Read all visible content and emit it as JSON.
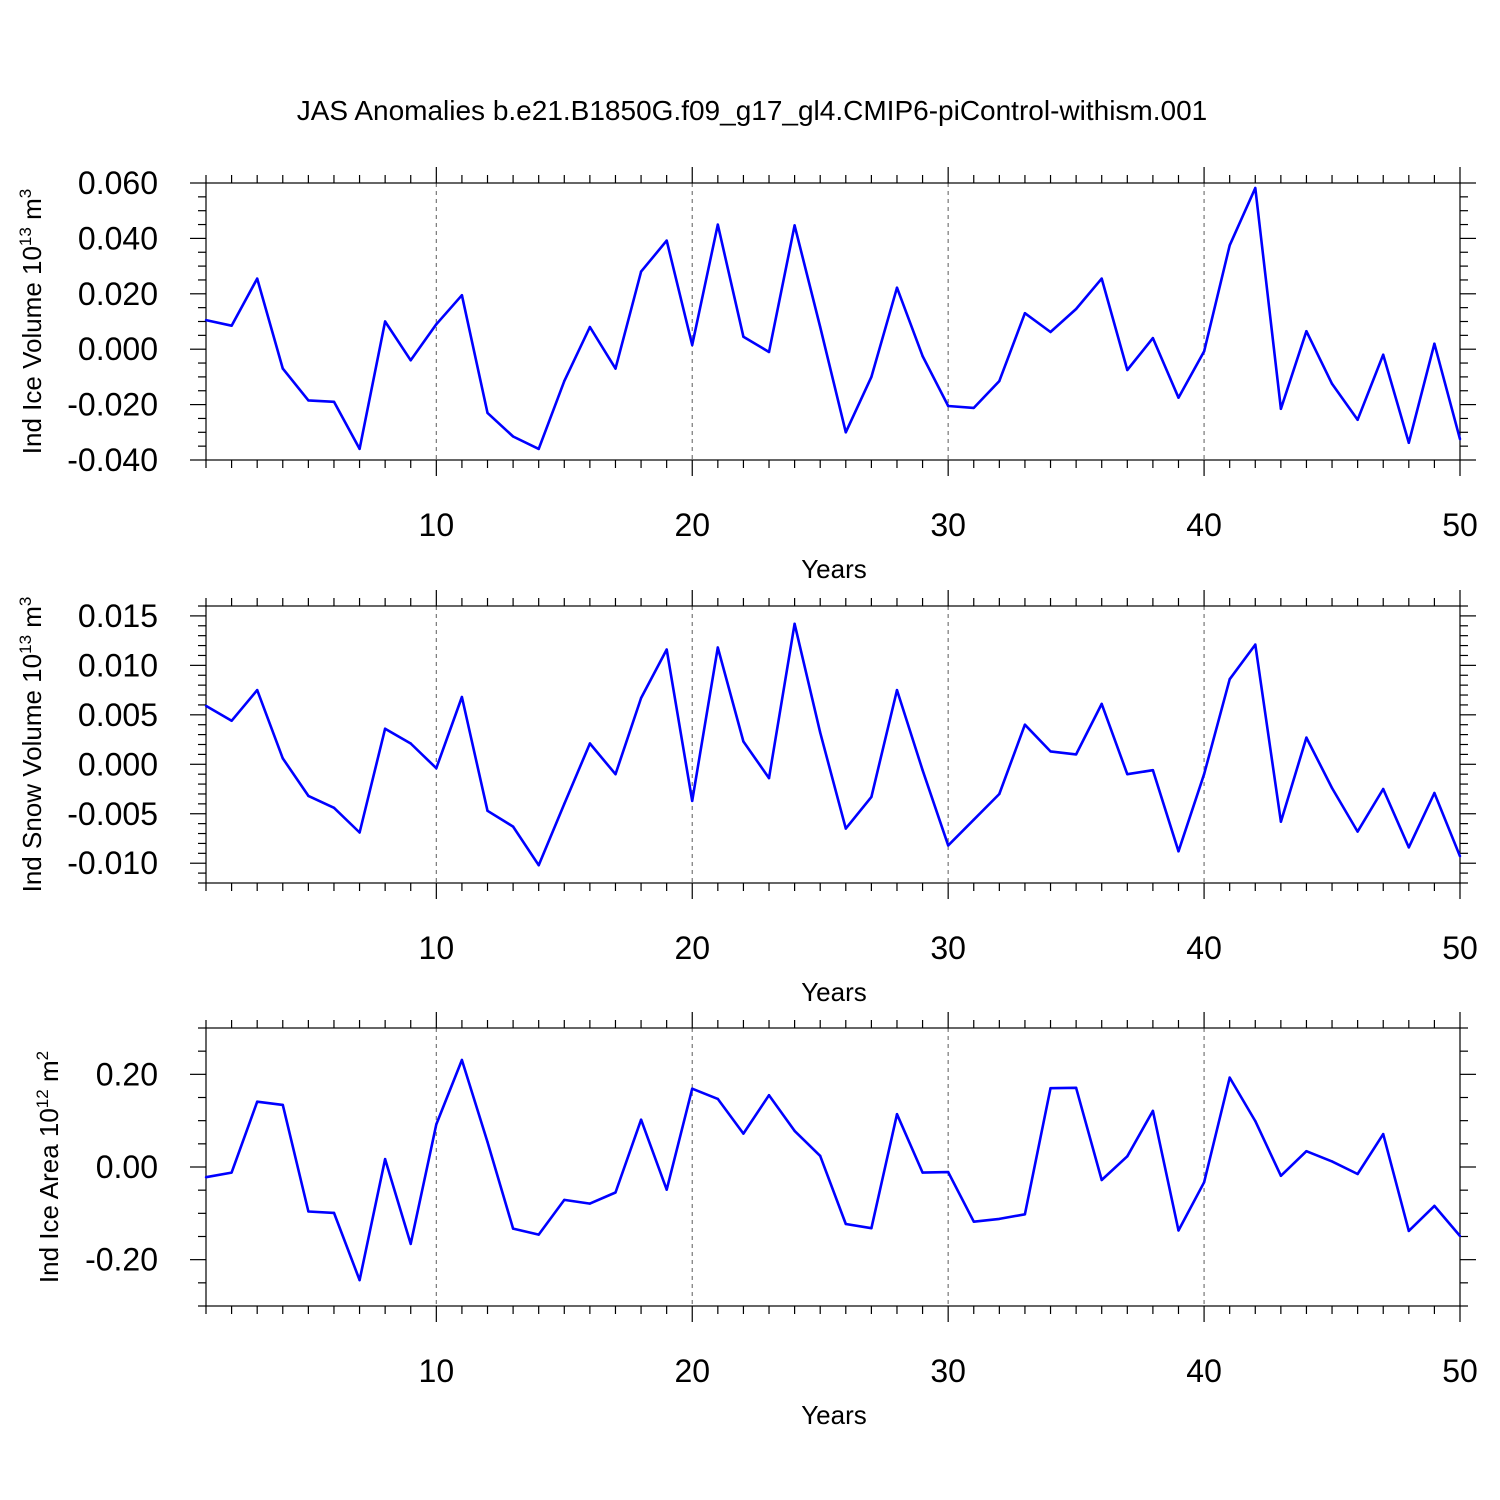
{
  "title": "JAS Anomalies b.e21.B1850G.f09_g17_gl4.CMIP6-piControl-withism.001",
  "line_color": "#0000ff",
  "chart_data": [
    {
      "type": "line",
      "xlabel": "Years",
      "ylabel_text": "Ind Ice Volume 10",
      "ylabel_exp": "13",
      "ylabel_unit": " m",
      "ylabel_unit_exp": "3",
      "xlim": [
        1,
        50
      ],
      "ylim": [
        -0.04,
        0.06
      ],
      "xticks": [
        10,
        20,
        30,
        40,
        50
      ],
      "xtick_labels": [
        "10",
        "20",
        "30",
        "40",
        "50"
      ],
      "yticks": [
        -0.04,
        -0.02,
        0.0,
        0.02,
        0.04,
        0.06
      ],
      "ytick_labels": [
        "-0.040",
        "-0.020",
        "0.000",
        "0.020",
        "0.040",
        "0.060"
      ],
      "yminor_step": 0.005,
      "x": [
        1,
        2,
        3,
        4,
        5,
        6,
        7,
        8,
        9,
        10,
        11,
        12,
        13,
        14,
        15,
        16,
        17,
        18,
        19,
        20,
        21,
        22,
        23,
        24,
        25,
        26,
        27,
        28,
        29,
        30,
        31,
        32,
        33,
        34,
        35,
        36,
        37,
        38,
        39,
        40,
        41,
        42,
        43,
        44,
        45,
        46,
        47,
        48,
        49,
        50
      ],
      "values": [
        0.0105,
        0.0085,
        0.0255,
        -0.007,
        -0.0185,
        -0.019,
        -0.036,
        0.01,
        -0.004,
        0.009,
        0.0195,
        -0.023,
        -0.0315,
        -0.036,
        -0.0115,
        0.008,
        -0.007,
        0.028,
        0.0392,
        0.0015,
        0.045,
        0.0045,
        -0.001,
        0.0447,
        0.008,
        -0.03,
        -0.01,
        0.0222,
        -0.0025,
        -0.0205,
        -0.0212,
        -0.0115,
        0.013,
        0.0062,
        0.0145,
        0.0255,
        -0.0075,
        0.004,
        -0.0175,
        -0.0008,
        0.0375,
        0.0582,
        -0.0215,
        0.0065,
        -0.0125,
        -0.0255,
        -0.002,
        -0.0338,
        0.002,
        -0.0325
      ]
    },
    {
      "type": "line",
      "xlabel": "Years",
      "ylabel_text": "Ind Snow Volume 10",
      "ylabel_exp": "13",
      "ylabel_unit": " m",
      "ylabel_unit_exp": "3",
      "xlim": [
        1,
        50
      ],
      "ylim": [
        -0.012,
        0.016
      ],
      "xticks": [
        10,
        20,
        30,
        40,
        50
      ],
      "xtick_labels": [
        "10",
        "20",
        "30",
        "40",
        "50"
      ],
      "yticks": [
        -0.01,
        -0.005,
        0.0,
        0.005,
        0.01,
        0.015
      ],
      "ytick_labels": [
        "-0.010",
        "-0.005",
        "0.000",
        "0.005",
        "0.010",
        "0.015"
      ],
      "yminor_step": 0.001,
      "x": [
        1,
        2,
        3,
        4,
        5,
        6,
        7,
        8,
        9,
        10,
        11,
        12,
        13,
        14,
        15,
        16,
        17,
        18,
        19,
        20,
        21,
        22,
        23,
        24,
        25,
        26,
        27,
        28,
        29,
        30,
        31,
        32,
        33,
        34,
        35,
        36,
        37,
        38,
        39,
        40,
        41,
        42,
        43,
        44,
        45,
        46,
        47,
        48,
        49,
        50
      ],
      "values": [
        0.0059,
        0.0044,
        0.0075,
        0.0006,
        -0.0032,
        -0.0044,
        -0.0069,
        0.0036,
        0.0021,
        -0.0004,
        0.0068,
        -0.0047,
        -0.0063,
        -0.0102,
        -0.004,
        0.0021,
        -0.001,
        0.0067,
        0.0116,
        -0.0037,
        0.0118,
        0.0023,
        -0.0014,
        0.0142,
        0.0032,
        -0.0065,
        -0.0033,
        0.0075,
        -0.0006,
        -0.0082,
        -0.0056,
        -0.003,
        0.004,
        0.0013,
        0.001,
        0.0061,
        -0.001,
        -0.0006,
        -0.0088,
        -0.001,
        0.0086,
        0.0121,
        -0.0058,
        0.0027,
        -0.0024,
        -0.0068,
        -0.0025,
        -0.0084,
        -0.0029,
        -0.0093
      ]
    },
    {
      "type": "line",
      "xlabel": "Years",
      "ylabel_text": "Ind Ice Area 10",
      "ylabel_exp": "12",
      "ylabel_unit": " m",
      "ylabel_unit_exp": "2",
      "xlim": [
        1,
        50
      ],
      "ylim": [
        -0.3,
        0.3
      ],
      "xticks": [
        10,
        20,
        30,
        40,
        50
      ],
      "xtick_labels": [
        "10",
        "20",
        "30",
        "40",
        "50"
      ],
      "yticks": [
        -0.2,
        0.0,
        0.2
      ],
      "ytick_labels": [
        "-0.20",
        "0.00",
        "0.20"
      ],
      "yminor_step": 0.05,
      "x": [
        1,
        2,
        3,
        4,
        5,
        6,
        7,
        8,
        9,
        10,
        11,
        12,
        13,
        14,
        15,
        16,
        17,
        18,
        19,
        20,
        21,
        22,
        23,
        24,
        25,
        26,
        27,
        28,
        29,
        30,
        31,
        32,
        33,
        34,
        35,
        36,
        37,
        38,
        39,
        40,
        41,
        42,
        43,
        44,
        45,
        46,
        47,
        48,
        49,
        50
      ],
      "values": [
        -0.022,
        -0.012,
        0.141,
        0.134,
        -0.096,
        -0.099,
        -0.244,
        0.017,
        -0.166,
        0.092,
        0.231,
        0.054,
        -0.133,
        -0.146,
        -0.071,
        -0.079,
        -0.055,
        0.102,
        -0.049,
        0.169,
        0.147,
        0.072,
        0.155,
        0.078,
        0.024,
        -0.123,
        -0.132,
        0.114,
        -0.012,
        -0.011,
        -0.118,
        -0.112,
        -0.102,
        0.17,
        0.171,
        -0.028,
        0.023,
        0.121,
        -0.137,
        -0.033,
        0.193,
        0.099,
        -0.019,
        0.034,
        0.012,
        -0.015,
        0.071,
        -0.138,
        -0.084,
        -0.149
      ]
    }
  ]
}
